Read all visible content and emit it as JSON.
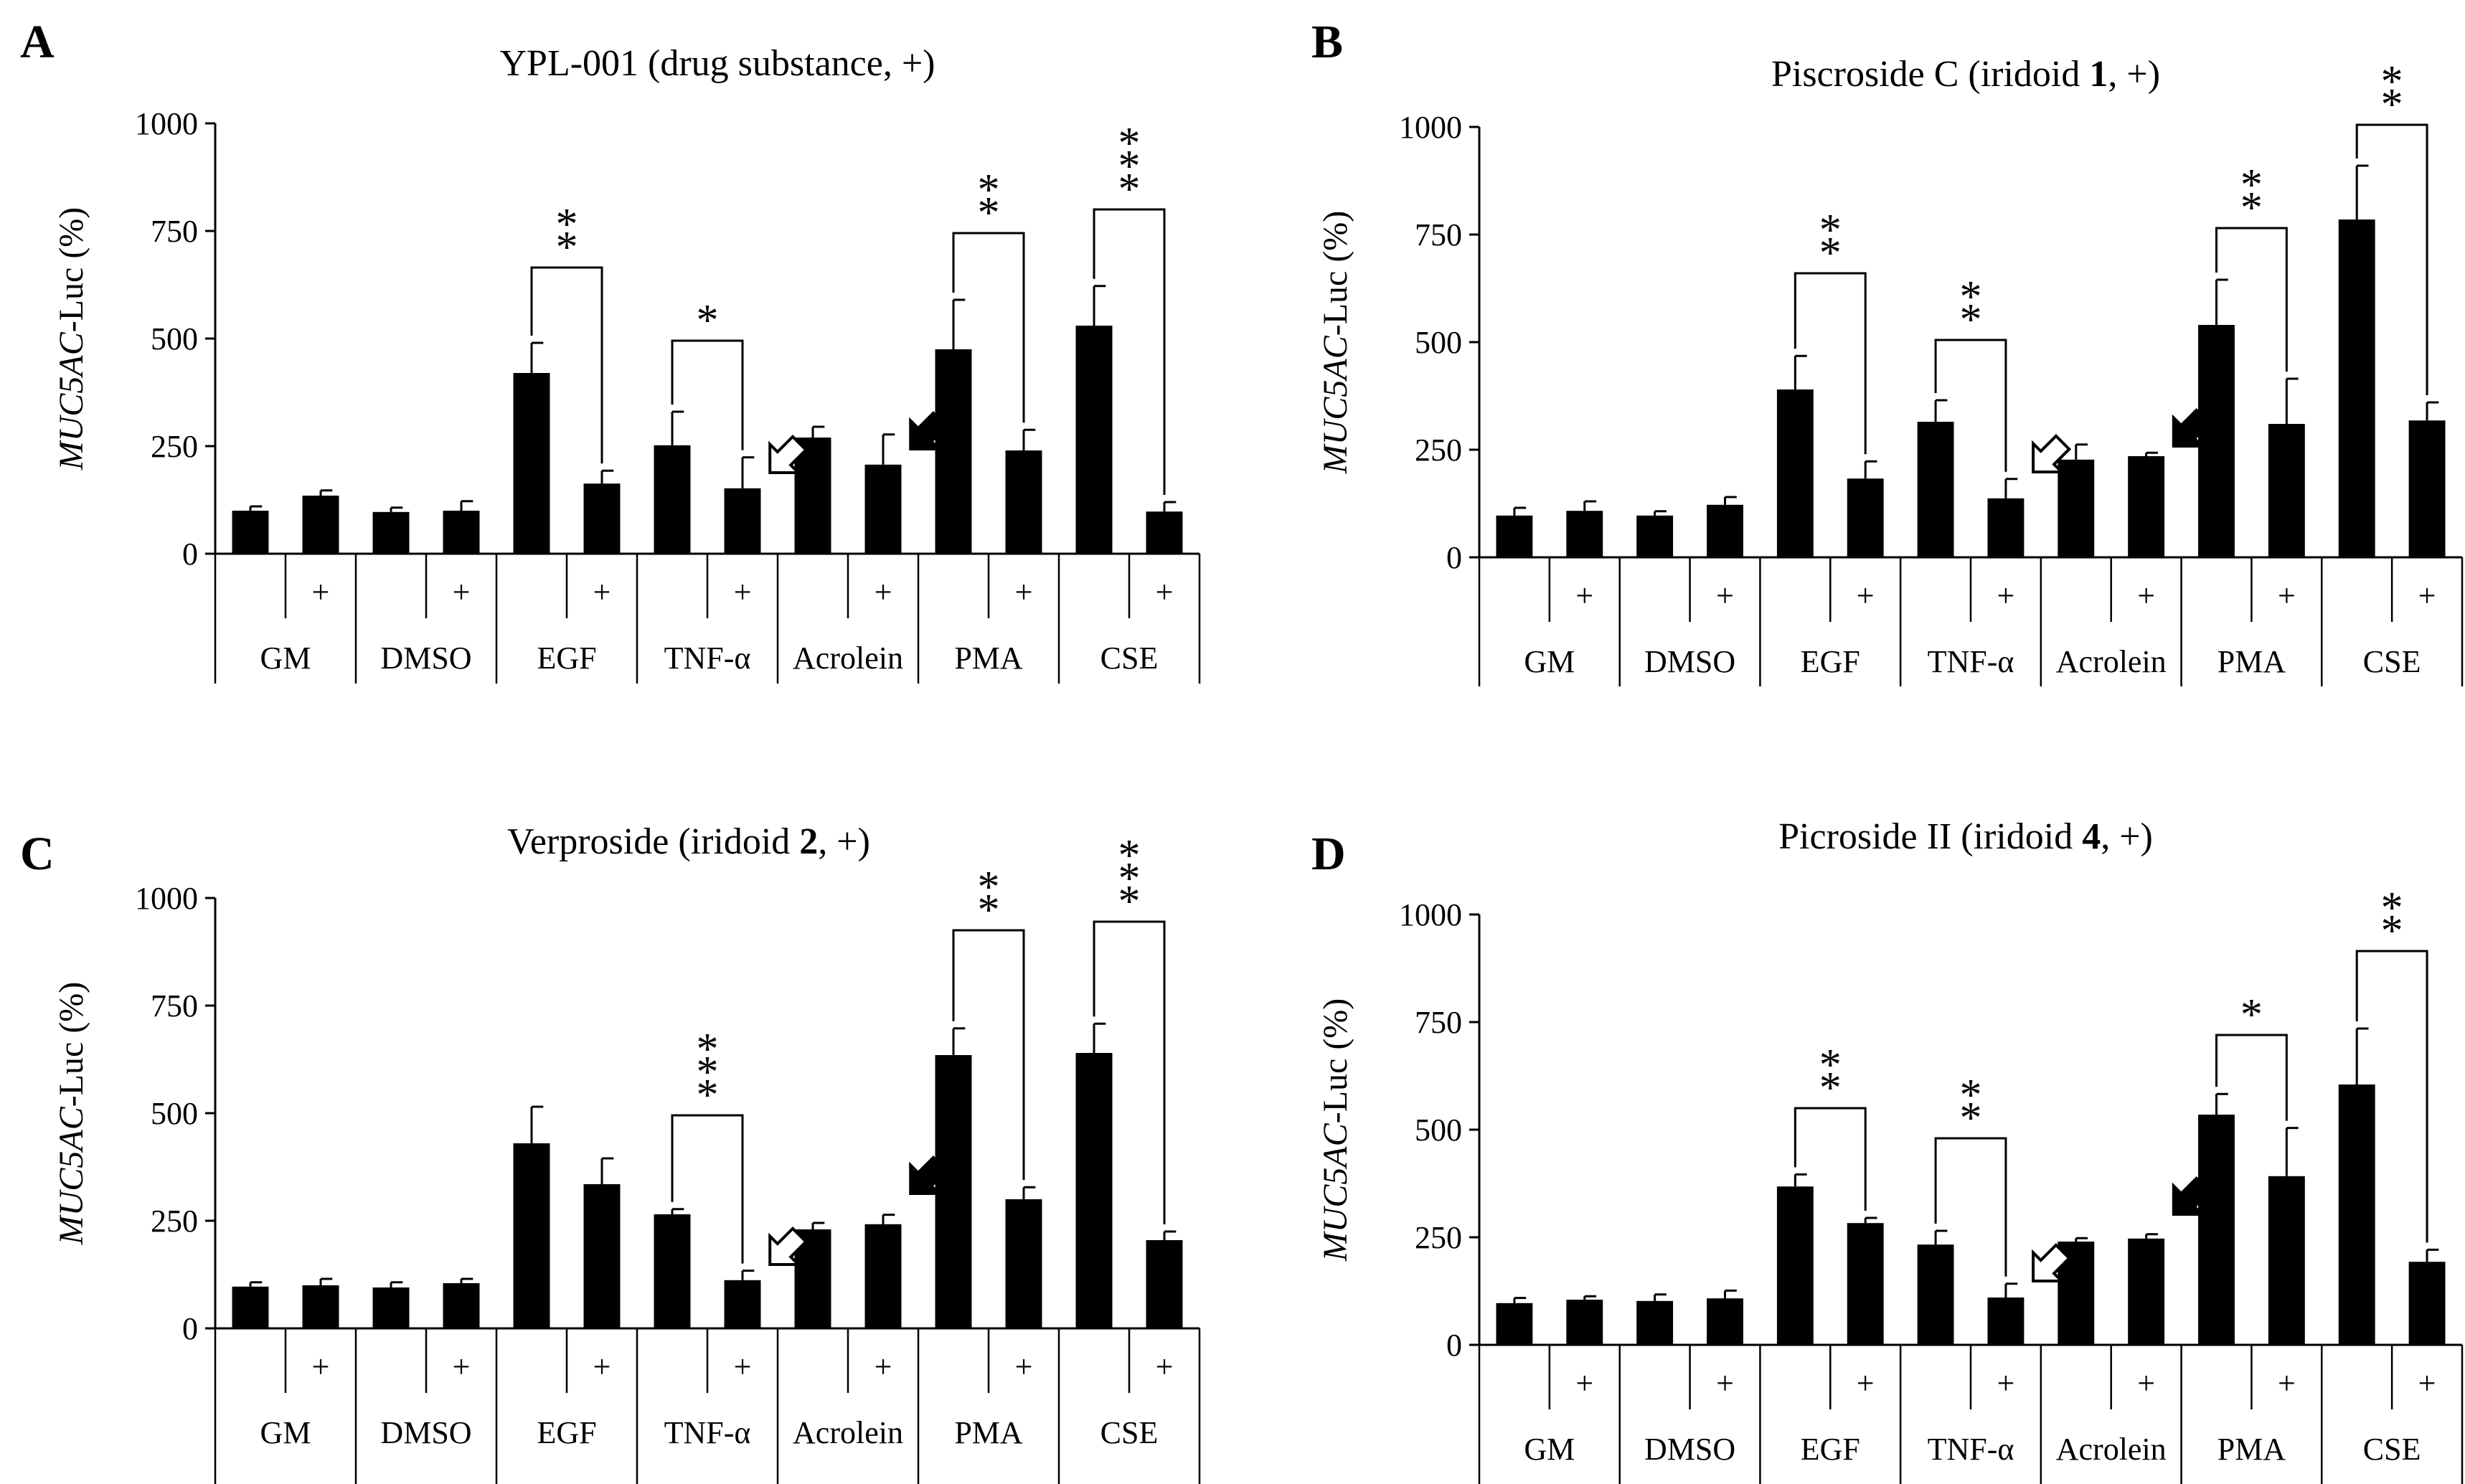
{
  "figure": {
    "panels": [
      {
        "letter": "A",
        "title_parts": [
          {
            "text": "YPL-001 (drug substance, +)",
            "bold": false
          }
        ]
      },
      {
        "letter": "B",
        "title_parts": [
          {
            "text": "Piscroside C (iridoid ",
            "bold": false
          },
          {
            "text": "1",
            "bold": true
          },
          {
            "text": ", +)",
            "bold": false
          }
        ]
      },
      {
        "letter": "C",
        "title_parts": [
          {
            "text": "Verproside (iridoid ",
            "bold": false
          },
          {
            "text": "2",
            "bold": true
          },
          {
            "text": ", +)",
            "bold": false
          }
        ]
      },
      {
        "letter": "D",
        "title_parts": [
          {
            "text": "Picroside II (iridoid ",
            "bold": false
          },
          {
            "text": "4",
            "bold": true
          },
          {
            "text": ", +)",
            "bold": false
          }
        ]
      }
    ]
  },
  "chart_data": [
    {
      "type": "bar",
      "panel": "A",
      "title": "YPL-001 (drug substance, +)",
      "ylabel_italic": "MUC5AC",
      "ylabel_rest": "-Luc (%)",
      "ylim": [
        0,
        1000
      ],
      "yticks": [
        "0",
        "250",
        "500",
        "750",
        "1000"
      ],
      "groups": [
        "GM",
        "DMSO",
        "EGF",
        "TNF-α",
        "Acrolein",
        "PMA",
        "CSE"
      ],
      "treatment_marker": "+",
      "bars": [
        {
          "group": "GM",
          "treated": false,
          "value": 100,
          "error": 10
        },
        {
          "group": "GM",
          "treated": true,
          "value": 135,
          "error": 12
        },
        {
          "group": "DMSO",
          "treated": false,
          "value": 97,
          "error": 10
        },
        {
          "group": "DMSO",
          "treated": true,
          "value": 100,
          "error": 22
        },
        {
          "group": "EGF",
          "treated": false,
          "value": 420,
          "error": 70
        },
        {
          "group": "EGF",
          "treated": true,
          "value": 163,
          "error": 30
        },
        {
          "group": "TNF-α",
          "treated": false,
          "value": 252,
          "error": 78
        },
        {
          "group": "TNF-α",
          "treated": true,
          "value": 152,
          "error": 72
        },
        {
          "group": "Acrolein",
          "treated": false,
          "value": 270,
          "error": 25
        },
        {
          "group": "Acrolein",
          "treated": true,
          "value": 207,
          "error": 70
        },
        {
          "group": "PMA",
          "treated": false,
          "value": 475,
          "error": 115
        },
        {
          "group": "PMA",
          "treated": true,
          "value": 240,
          "error": 48
        },
        {
          "group": "CSE",
          "treated": false,
          "value": 530,
          "error": 92
        },
        {
          "group": "CSE",
          "treated": true,
          "value": 98,
          "error": 22
        }
      ],
      "significance": [
        {
          "group": "EGF",
          "stars": "**",
          "bracket_top": 665
        },
        {
          "group": "TNF-α",
          "stars": "*",
          "bracket_top": 495
        },
        {
          "group": "PMA",
          "stars": "**",
          "bracket_top": 745
        },
        {
          "group": "CSE",
          "stars": "***",
          "bracket_top": 800
        }
      ],
      "arrows": [
        {
          "group": "TNF-α",
          "style": "open",
          "value": 230
        },
        {
          "group": "Acrolein",
          "style": "filled",
          "value": 285
        }
      ]
    },
    {
      "type": "bar",
      "panel": "B",
      "title": "Piscroside C (iridoid 1, +)",
      "ylabel_italic": "MUC5AC",
      "ylabel_rest": "-Luc (%)",
      "ylim": [
        0,
        1000
      ],
      "yticks": [
        "0",
        "250",
        "500",
        "750",
        "1000"
      ],
      "groups": [
        "GM",
        "DMSO",
        "EGF",
        "TNF-α",
        "Acrolein",
        "PMA",
        "CSE"
      ],
      "treatment_marker": "+",
      "bars": [
        {
          "group": "GM",
          "treated": false,
          "value": 97,
          "error": 18
        },
        {
          "group": "GM",
          "treated": true,
          "value": 108,
          "error": 22
        },
        {
          "group": "DMSO",
          "treated": false,
          "value": 97,
          "error": 10
        },
        {
          "group": "DMSO",
          "treated": true,
          "value": 122,
          "error": 18
        },
        {
          "group": "EGF",
          "treated": false,
          "value": 390,
          "error": 78
        },
        {
          "group": "EGF",
          "treated": true,
          "value": 183,
          "error": 40
        },
        {
          "group": "TNF-α",
          "treated": false,
          "value": 315,
          "error": 50
        },
        {
          "group": "TNF-α",
          "treated": true,
          "value": 137,
          "error": 45
        },
        {
          "group": "Acrolein",
          "treated": false,
          "value": 227,
          "error": 35
        },
        {
          "group": "Acrolein",
          "treated": true,
          "value": 235,
          "error": 8
        },
        {
          "group": "PMA",
          "treated": false,
          "value": 540,
          "error": 105
        },
        {
          "group": "PMA",
          "treated": true,
          "value": 310,
          "error": 105
        },
        {
          "group": "CSE",
          "treated": false,
          "value": 785,
          "error": 125
        },
        {
          "group": "CSE",
          "treated": true,
          "value": 318,
          "error": 42
        }
      ],
      "significance": [
        {
          "group": "EGF",
          "stars": "**",
          "bracket_top": 660
        },
        {
          "group": "TNF-α",
          "stars": "**",
          "bracket_top": 505
        },
        {
          "group": "PMA",
          "stars": "**",
          "bracket_top": 765
        },
        {
          "group": "CSE",
          "stars": "**",
          "bracket_top": 1005
        }
      ],
      "arrows": [
        {
          "group": "TNF-α",
          "style": "open",
          "value": 240
        },
        {
          "group": "Acrolein",
          "style": "filled",
          "value": 300
        }
      ]
    },
    {
      "type": "bar",
      "panel": "C",
      "title": "Verproside (iridoid 2, +)",
      "ylabel_italic": "MUC5AC",
      "ylabel_rest": "-Luc (%)",
      "ylim": [
        0,
        1000
      ],
      "yticks": [
        "0",
        "250",
        "500",
        "750",
        "1000"
      ],
      "groups": [
        "GM",
        "DMSO",
        "EGF",
        "TNF-α",
        "Acrolein",
        "PMA",
        "CSE"
      ],
      "treatment_marker": "+",
      "bars": [
        {
          "group": "GM",
          "treated": false,
          "value": 97,
          "error": 10
        },
        {
          "group": "GM",
          "treated": true,
          "value": 100,
          "error": 15
        },
        {
          "group": "DMSO",
          "treated": false,
          "value": 95,
          "error": 12
        },
        {
          "group": "DMSO",
          "treated": true,
          "value": 105,
          "error": 10
        },
        {
          "group": "EGF",
          "treated": false,
          "value": 430,
          "error": 85
        },
        {
          "group": "EGF",
          "treated": true,
          "value": 335,
          "error": 60
        },
        {
          "group": "TNF-α",
          "treated": false,
          "value": 265,
          "error": 12
        },
        {
          "group": "TNF-α",
          "treated": true,
          "value": 112,
          "error": 22
        },
        {
          "group": "Acrolein",
          "treated": false,
          "value": 230,
          "error": 15
        },
        {
          "group": "Acrolein",
          "treated": true,
          "value": 242,
          "error": 22
        },
        {
          "group": "PMA",
          "treated": false,
          "value": 635,
          "error": 62
        },
        {
          "group": "PMA",
          "treated": true,
          "value": 300,
          "error": 28
        },
        {
          "group": "CSE",
          "treated": false,
          "value": 640,
          "error": 68
        },
        {
          "group": "CSE",
          "treated": true,
          "value": 205,
          "error": 20
        }
      ],
      "significance": [
        {
          "group": "TNF-α",
          "stars": "***",
          "bracket_top": 495
        },
        {
          "group": "PMA",
          "stars": "**",
          "bracket_top": 925
        },
        {
          "group": "CSE",
          "stars": "***",
          "bracket_top": 945
        }
      ],
      "arrows": [
        {
          "group": "TNF-α",
          "style": "open",
          "value": 190
        },
        {
          "group": "Acrolein",
          "style": "filled",
          "value": 355
        }
      ]
    },
    {
      "type": "bar",
      "panel": "D",
      "title": "Picroside II (iridoid 4, +)",
      "ylabel_italic": "MUC5AC",
      "ylabel_rest": "-Luc (%)",
      "ylim": [
        0,
        1000
      ],
      "yticks": [
        "0",
        "250",
        "500",
        "750",
        "1000"
      ],
      "groups": [
        "GM",
        "DMSO",
        "EGF",
        "TNF-α",
        "Acrolein",
        "PMA",
        "CSE"
      ],
      "treatment_marker": "+",
      "bars": [
        {
          "group": "GM",
          "treated": false,
          "value": 97,
          "error": 12
        },
        {
          "group": "GM",
          "treated": true,
          "value": 105,
          "error": 8
        },
        {
          "group": "DMSO",
          "treated": false,
          "value": 102,
          "error": 15
        },
        {
          "group": "DMSO",
          "treated": true,
          "value": 108,
          "error": 18
        },
        {
          "group": "EGF",
          "treated": false,
          "value": 368,
          "error": 28
        },
        {
          "group": "EGF",
          "treated": true,
          "value": 283,
          "error": 12
        },
        {
          "group": "TNF-α",
          "treated": false,
          "value": 233,
          "error": 32
        },
        {
          "group": "TNF-α",
          "treated": true,
          "value": 110,
          "error": 32
        },
        {
          "group": "Acrolein",
          "treated": false,
          "value": 240,
          "error": 8
        },
        {
          "group": "Acrolein",
          "treated": true,
          "value": 247,
          "error": 10
        },
        {
          "group": "PMA",
          "treated": false,
          "value": 535,
          "error": 48
        },
        {
          "group": "PMA",
          "treated": true,
          "value": 392,
          "error": 112
        },
        {
          "group": "CSE",
          "treated": false,
          "value": 605,
          "error": 130
        },
        {
          "group": "CSE",
          "treated": true,
          "value": 193,
          "error": 28
        }
      ],
      "significance": [
        {
          "group": "EGF",
          "stars": "**",
          "bracket_top": 550
        },
        {
          "group": "TNF-α",
          "stars": "**",
          "bracket_top": 480
        },
        {
          "group": "PMA",
          "stars": "*",
          "bracket_top": 720
        },
        {
          "group": "CSE",
          "stars": "**",
          "bracket_top": 915
        }
      ],
      "arrows": [
        {
          "group": "TNF-α",
          "style": "open",
          "value": 190
        },
        {
          "group": "Acrolein",
          "style": "filled",
          "value": 345
        }
      ]
    }
  ]
}
